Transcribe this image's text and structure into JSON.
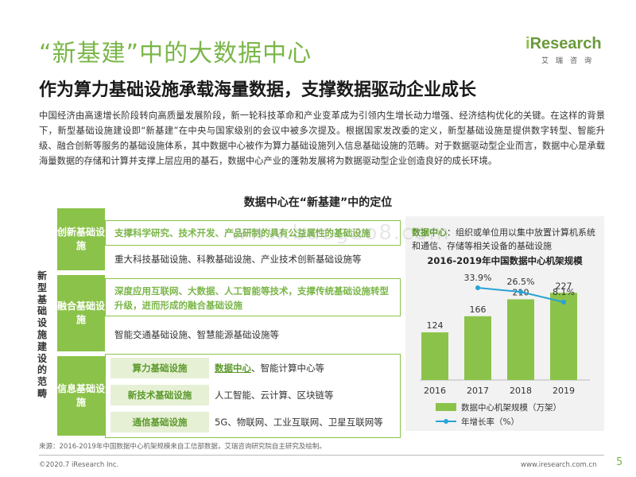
{
  "title": "“新基建”中的大数据中心",
  "subtitle": "作为算力基础设施承载海量数据，支撑数据驱动企业成长",
  "logo": {
    "brand_i": "i",
    "brand_rest": "Research",
    "cn": "艾瑞咨询"
  },
  "body_text": "中国经济由高速增长阶段转向高质量发展阶段，新一轮科技革命和产业变革成为引领内生增长动力增强、经济结构优化的关键。在这样的背景下，新型基础设施建设即“新基建”在中央与国家级别的会议中被多次提及。根据国家发改委的定义，新型基础设施是提供数字转型、智能升级、融合创新等服务的基础设施体系，其中数据中心被作为算力基础设施列入信息基础设施的范畴。对于数据驱动型企业而言，数据中心是承载海量数据的存储和计算并支撑上层应用的基石，数据中心产业的蓬勃发展将为数据驱动型企业创造良好的成长环境。",
  "diagram": {
    "title": "数据中心在“新基建”中的定位",
    "side_label": "新型基础设施建设的范畴",
    "categories": [
      {
        "name": "创新基础设施",
        "highlight": "支撑科学研究、技术开发、产品研制的具有公益属性的基础设施",
        "detail": "重大科技基础设施、科教基础设施、产业技术创新基础设施等"
      },
      {
        "name": "融合基础设施",
        "highlight": "深度应用互联网、大数据、人工智能等技术，支撑传统基础设施转型升级，进而形成的融合基础设施",
        "detail": "智能交通基础设施、智慧能源基础设施等"
      },
      {
        "name": "信息基础设施",
        "subs": [
          {
            "label": "算力基础设施",
            "text_hl": "数据中心",
            "text": "、智能计算中心等"
          },
          {
            "label": "新技术基础设施",
            "text": "人工智能、云计算、区块链等"
          },
          {
            "label": "通信基础设施",
            "text": "5G、物联网、工业互联网、卫星互联网等"
          }
        ]
      }
    ]
  },
  "definition": {
    "key": "数据中心",
    "text": "：组织或单位用以集中放置计算机系统和通信、存储等相关设备的基础设施"
  },
  "chart_data": {
    "type": "bar",
    "title": "2016-2019年中国数据中心机架规模",
    "categories": [
      "2016",
      "2017",
      "2018",
      "2019"
    ],
    "series": [
      {
        "name": "数据中心机架规模（万架）",
        "type": "bar",
        "values": [
          124,
          166,
          210,
          227
        ],
        "color": "#8bc34a"
      },
      {
        "name": "年增长率（%）",
        "type": "line",
        "values": [
          null,
          33.9,
          26.5,
          8.1
        ],
        "labels": [
          "",
          "33.9%",
          "26.5%",
          "8.1%"
        ],
        "color": "#29a3d6"
      }
    ],
    "legend": "bottom"
  },
  "watermark": "www.baogao8.com",
  "source": "来源：2016-2019年中国数据中心机架规模来自工信部数据，艾瑞咨询研究院自主研究及绘制。",
  "copyright": "©2020.7 iResearch Inc.",
  "site": "www.iresearch.com.cn",
  "page_number": "5"
}
